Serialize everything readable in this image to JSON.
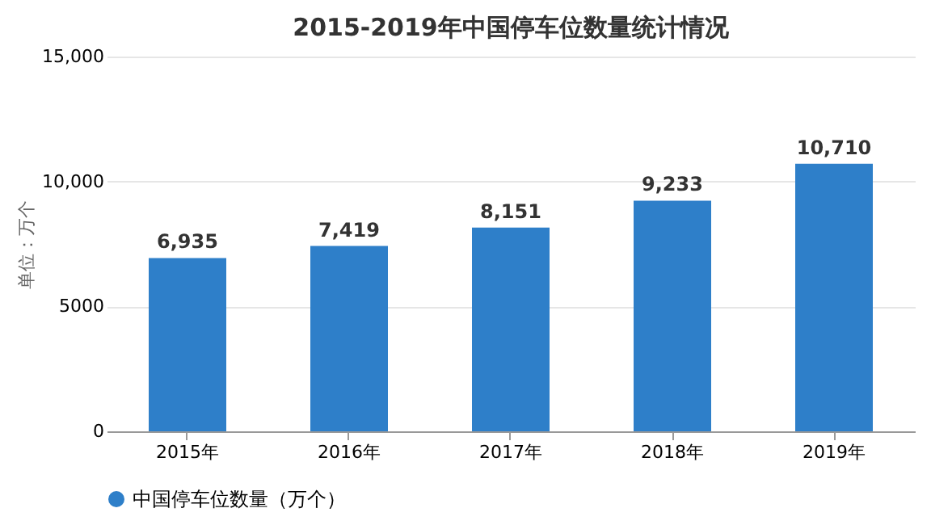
{
  "chart_data": {
    "type": "bar",
    "title": "2015-2019年中国停车位数量统计情况",
    "ylabel": "单位：万个",
    "categories": [
      "2015年",
      "2016年",
      "2017年",
      "2018年",
      "2019年"
    ],
    "series": [
      {
        "name": "中国停车位数量（万个）",
        "color": "#2e7fc9",
        "values": [
          6935,
          7419,
          8151,
          9233,
          10710
        ]
      }
    ],
    "value_labels": [
      "6,935",
      "7,419",
      "8,151",
      "9,233",
      "10,710"
    ],
    "ylim": [
      0,
      15000
    ],
    "yticks": [
      0,
      5000,
      {
        "value": 10000,
        "label": "10,000"
      },
      {
        "value": 15000,
        "label": "15,000"
      }
    ],
    "grid": "y",
    "legend": "bottom"
  }
}
